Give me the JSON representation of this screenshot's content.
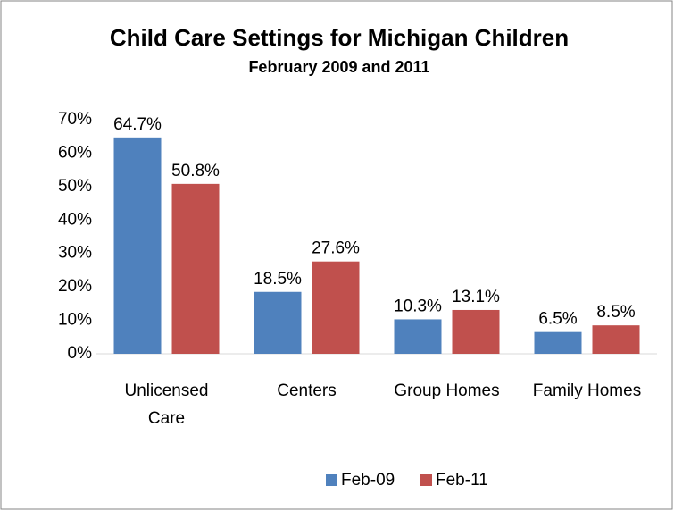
{
  "chart_data": {
    "type": "bar",
    "title": "Child Care Settings for Michigan Children",
    "subtitle": "February 2009 and 2011",
    "categories": [
      "Unlicensed Care",
      "Centers",
      "Group Homes",
      "Family Homes"
    ],
    "series": [
      {
        "name": "Feb-09",
        "color": "#4f81bd",
        "values": [
          64.7,
          18.5,
          10.3,
          6.5
        ],
        "value_labels": [
          "64.7%",
          "18.5%",
          "10.3%",
          "6.5%"
        ]
      },
      {
        "name": "Feb-11",
        "color": "#c0504d",
        "values": [
          50.8,
          27.6,
          13.1,
          8.5
        ],
        "value_labels": [
          "50.8%",
          "27.6%",
          "13.1%",
          "8.5%"
        ]
      }
    ],
    "ylim": [
      0,
      70
    ],
    "yticks": [
      {
        "value": 0,
        "label": "0%"
      },
      {
        "value": 10,
        "label": "10%"
      },
      {
        "value": 20,
        "label": "20%"
      },
      {
        "value": 30,
        "label": "30%"
      },
      {
        "value": 40,
        "label": "40%"
      },
      {
        "value": 50,
        "label": "50%"
      },
      {
        "value": 60,
        "label": "60%"
      },
      {
        "value": 70,
        "label": "70%"
      }
    ],
    "grid": false,
    "legend": "bottom"
  }
}
